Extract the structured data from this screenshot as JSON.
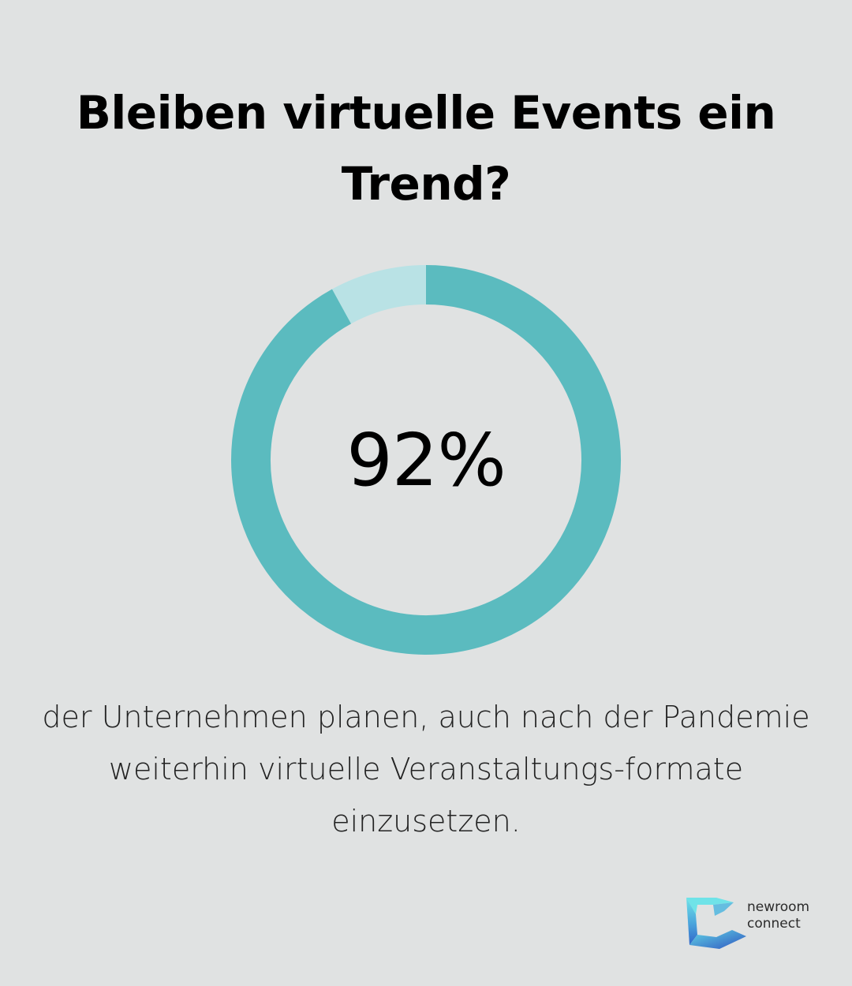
{
  "title": "Bleiben virtuelle Events ein Trend?",
  "description": "der Unternehmen planen, auch nach der Pandemie weiterhin virtuelle Veranstaltungs-formate einzusetzen.",
  "brand": {
    "line1": "newroom",
    "line2": "connect",
    "logo_icon": "newroom-connect-logo-icon"
  },
  "colors": {
    "background": "#e0e2e2",
    "ring_main": "#5bbbbf",
    "ring_rest": "#b9e2e5",
    "text": "#000000"
  },
  "chart_data": {
    "type": "pie",
    "style": "donut",
    "value_label": "92%",
    "slices": [
      {
        "value": 92
      },
      {
        "value": 8
      }
    ]
  }
}
